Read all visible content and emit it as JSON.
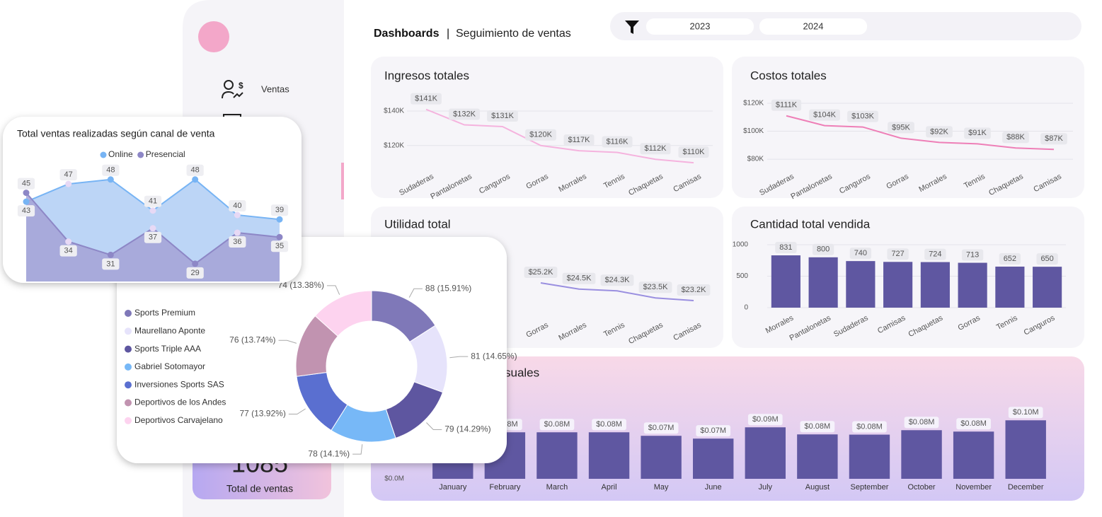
{
  "header": {
    "title": "Dashboards",
    "separator": "|",
    "subtitle": "Seguimiento de ventas"
  },
  "filter": {
    "options": [
      "2023",
      "2024"
    ]
  },
  "sidebar": {
    "items": [
      {
        "label": "Ventas"
      }
    ]
  },
  "kpi": {
    "value": 1085,
    "label": "Total de ventas"
  },
  "chart_data": [
    {
      "type": "line",
      "title": "Ingresos totales",
      "color": "#f5b3de",
      "categories": [
        "Sudaderas",
        "Pantalonetas",
        "Canguros",
        "Gorras",
        "Morrales",
        "Tennis",
        "Chaquetas",
        "Camisas"
      ],
      "values": [
        141000,
        132000,
        131000,
        120000,
        117000,
        116000,
        112000,
        110000
      ],
      "value_labels": [
        "$141K",
        "$132K",
        "$131K",
        "$120K",
        "$117K",
        "$116K",
        "$112K",
        "$110K"
      ],
      "ylim": [
        108000,
        147000
      ],
      "yticks": [
        {
          "value": 140000,
          "label": "$140K"
        },
        {
          "value": 120000,
          "label": "$120K"
        }
      ],
      "grid": true
    },
    {
      "type": "line",
      "title": "Costos totales",
      "color": "#ee7fb7",
      "categories": [
        "Sudaderas",
        "Pantalonetas",
        "Canguros",
        "Gorras",
        "Morrales",
        "Tennis",
        "Chaquetas",
        "Camisas"
      ],
      "values": [
        111000,
        104000,
        103000,
        95000,
        92000,
        91000,
        88000,
        87000
      ],
      "value_labels": [
        "$111K",
        "$104K",
        "$103K",
        "$95K",
        "$92K",
        "$91K",
        "$88K",
        "$87K"
      ],
      "ylim": [
        75000,
        123000
      ],
      "yticks": [
        {
          "value": 120000,
          "label": "$120K"
        },
        {
          "value": 100000,
          "label": "$100K"
        },
        {
          "value": 80000,
          "label": "$80K"
        }
      ],
      "grid": true
    },
    {
      "type": "line",
      "title": "Utilidad total",
      "color": "#9a8fe0",
      "categories": [
        null,
        null,
        null,
        "Gorras",
        "Morrales",
        "Tennis",
        "Chaquetas",
        "Camisas"
      ],
      "values": [
        null,
        null,
        null,
        25200,
        24500,
        24300,
        23500,
        23200
      ],
      "value_labels": [
        null,
        null,
        null,
        "$25.2K",
        "$24.5K",
        "$24.3K",
        "$23.5K",
        "$23.2K"
      ],
      "ylim": [
        21600,
        29200
      ],
      "yticks": [],
      "grid": false
    },
    {
      "type": "bar",
      "title": "Cantidad total vendida",
      "color": "#5f57a1",
      "categories": [
        "Morrales",
        "Pantalonetas",
        "Sudaderas",
        "Camisas",
        "Chaquetas",
        "Gorras",
        "Tennis",
        "Canguros"
      ],
      "values": [
        831,
        800,
        740,
        727,
        724,
        713,
        652,
        650
      ],
      "ylim": [
        0,
        1000
      ],
      "yticks": [
        1000,
        500,
        0
      ],
      "grid": true
    },
    {
      "type": "bar",
      "title": "suales",
      "color": "#5f57a1",
      "categories": [
        "January",
        "February",
        "March",
        "April",
        "May",
        "June",
        "July",
        "August",
        "September",
        "October",
        "November",
        "December"
      ],
      "values": [
        79500,
        79500,
        79500,
        79500,
        73500,
        68700,
        88000,
        75900,
        75500,
        83100,
        80700,
        100000
      ],
      "value_labels": [
        null,
        "$0.08M",
        "$0.08M",
        "$0.08M",
        "$0.07M",
        "$0.07M",
        "$0.09M",
        "$0.08M",
        "$0.08M",
        "$0.08M",
        "$0.08M",
        "$0.10M"
      ],
      "ylim": [
        0,
        110000
      ],
      "yticks": [
        {
          "value": 0,
          "label": "$0.0M"
        }
      ],
      "grid": false
    },
    {
      "type": "area",
      "title": "Total ventas realizadas según canal de venta",
      "categories": [
        null,
        null,
        null,
        null,
        null,
        null,
        null
      ],
      "series": [
        {
          "name": "Online",
          "color": "#77b4f4",
          "values": [
            43,
            47,
            48,
            41,
            48,
            40,
            39
          ]
        },
        {
          "name": "Presencial",
          "color": "#8d87c6",
          "values": [
            45,
            34,
            31,
            37,
            29,
            36,
            35
          ]
        }
      ],
      "ylim": [
        25,
        51
      ],
      "legend": "top"
    },
    {
      "type": "donut",
      "categories": [
        "Sports Premium",
        "Maurellano Aponte",
        "Sports Triple AAA",
        "Gabriel Sotomayor",
        "Inversiones Sports SAS",
        "Deportivos de los Andes",
        "Deportivos Carvajelano"
      ],
      "values": [
        88,
        81,
        79,
        78,
        77,
        76,
        74
      ],
      "value_labels": [
        "88 (15.91%)",
        "81 (14.65%)",
        "79 (14.29%)",
        "78 (14.1%)",
        "77 (13.92%)",
        "76 (13.74%)",
        "74 (13.38%)"
      ],
      "colors": [
        "#7f78b8",
        "#e6e3fb",
        "#5e56a0",
        "#77b8f7",
        "#5a6fd0",
        "#c193b0",
        "#fdd3ef"
      ],
      "legend": "left"
    }
  ]
}
